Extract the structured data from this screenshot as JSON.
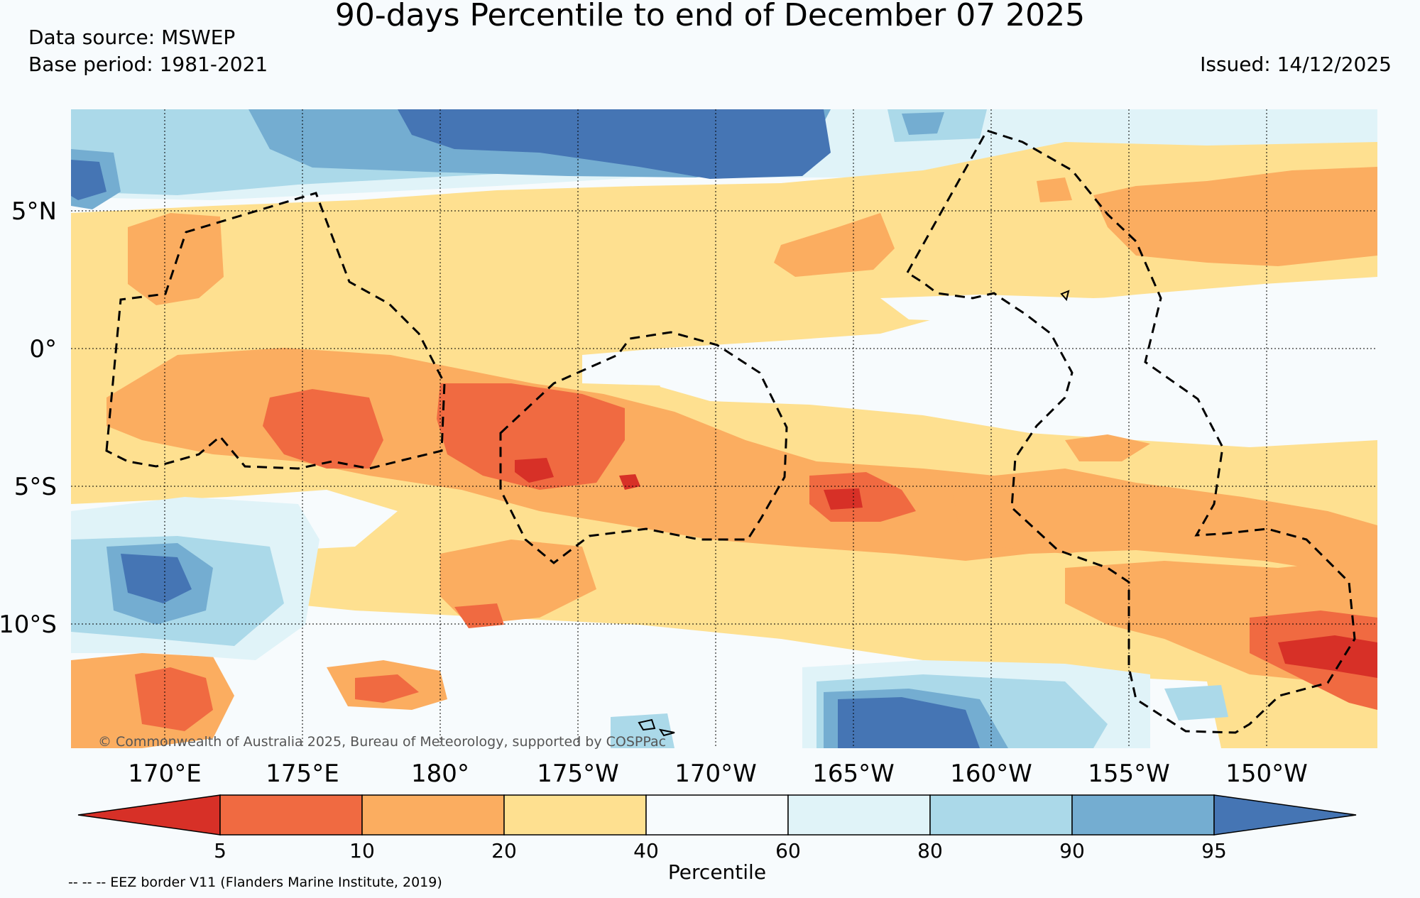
{
  "header": {
    "title": "90-days Percentile to end of December 07 2025",
    "data_source": "Data source: MSWEP",
    "base_period": "Base period: 1981-2021",
    "issued": "Issued: 14/12/2025"
  },
  "map": {
    "lon_labels": [
      "170°E",
      "175°E",
      "180°",
      "175°W",
      "170°W",
      "165°W",
      "160°W",
      "155°W",
      "150°W"
    ],
    "lat_labels": [
      "5°N",
      "0°",
      "5°S",
      "10°S"
    ],
    "copyright": "© Commonwealth of Australia 2025, Bureau of Meteorology, supported by COSPPac",
    "colors": {
      "below5": "#d73027",
      "p5_10": "#f06a41",
      "p10_20": "#fbad60",
      "p20_40": "#fee090",
      "p40_60": "#f7fbfd",
      "p60_80": "#e0f3f8",
      "p80_90": "#abd9e9",
      "p90_95": "#74add1",
      "above95": "#4575b4"
    }
  },
  "colorbar": {
    "ticks": [
      "5",
      "10",
      "20",
      "40",
      "60",
      "80",
      "90",
      "95"
    ],
    "label": "Percentile"
  },
  "footnote": "-- -- -- EEZ border V11 (Flanders Marine Institute, 2019)"
}
